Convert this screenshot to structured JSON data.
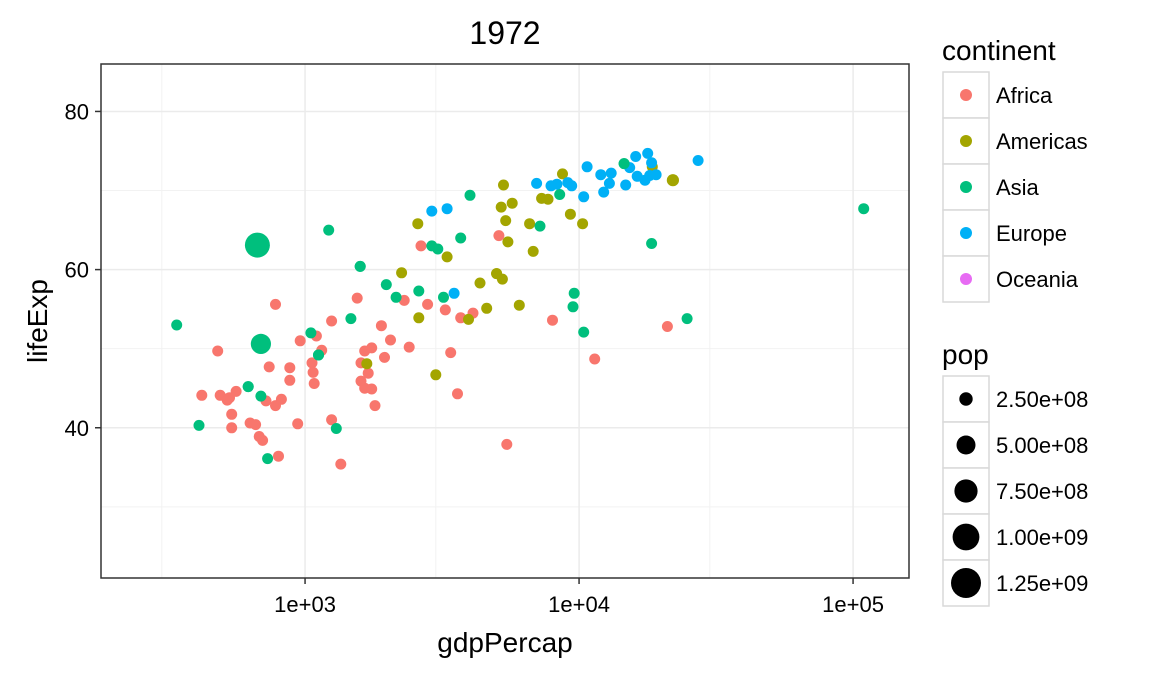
{
  "chart_data": {
    "type": "scatter",
    "title": "1972",
    "xlabel": "gdpPercap",
    "ylabel": "lifeExp",
    "x_scale": "log10",
    "xlim": [
      180,
      160000
    ],
    "ylim": [
      21,
      86
    ],
    "grid": true,
    "x_ticks": [
      {
        "value": 1000,
        "label": "1e+03"
      },
      {
        "value": 10000,
        "label": "1e+04"
      },
      {
        "value": 100000,
        "label": "1e+05"
      }
    ],
    "y_ticks": [
      {
        "value": 40,
        "label": "40"
      },
      {
        "value": 60,
        "label": "60"
      },
      {
        "value": 80,
        "label": "80"
      }
    ],
    "legend_color": {
      "title": "continent",
      "items": [
        {
          "name": "Africa",
          "color": "#F8766D"
        },
        {
          "name": "Americas",
          "color": "#A3A500"
        },
        {
          "name": "Asia",
          "color": "#00BF7D"
        },
        {
          "name": "Europe",
          "color": "#00B0F6"
        },
        {
          "name": "Oceania",
          "color": "#E76BF3"
        }
      ]
    },
    "legend_size": {
      "title": "pop",
      "items": [
        {
          "label": "2.50e+08",
          "value": 250000000
        },
        {
          "label": "5.00e+08",
          "value": 500000000
        },
        {
          "label": "7.50e+08",
          "value": 750000000
        },
        {
          "label": "1.00e+09",
          "value": 1000000000
        },
        {
          "label": "1.25e+09",
          "value": 1250000000
        }
      ]
    },
    "legend_placement": "right",
    "series": [
      {
        "name": "Africa",
        "points": [
          [
            420,
            44.1
          ],
          [
            480,
            49.7
          ],
          [
            490,
            44.1
          ],
          [
            520,
            43.5
          ],
          [
            540,
            41.7
          ],
          [
            540,
            40.0
          ],
          [
            530,
            43.8
          ],
          [
            560,
            44.6
          ],
          [
            630,
            40.6
          ],
          [
            660,
            40.4
          ],
          [
            680,
            38.9
          ],
          [
            700,
            38.4
          ],
          [
            720,
            43.4
          ],
          [
            740,
            47.7
          ],
          [
            780,
            42.8
          ],
          [
            780,
            55.6
          ],
          [
            800,
            36.4
          ],
          [
            820,
            43.6
          ],
          [
            880,
            46.0
          ],
          [
            880,
            47.6
          ],
          [
            940,
            40.5
          ],
          [
            960,
            51.0
          ],
          [
            1060,
            48.2
          ],
          [
            1070,
            47.0
          ],
          [
            1080,
            45.6
          ],
          [
            1100,
            51.6
          ],
          [
            1150,
            49.8
          ],
          [
            1250,
            53.5
          ],
          [
            1250,
            41.0
          ],
          [
            1350,
            35.4
          ],
          [
            1550,
            56.4
          ],
          [
            1600,
            45.9
          ],
          [
            1600,
            48.2
          ],
          [
            1650,
            45.0
          ],
          [
            1650,
            49.7
          ],
          [
            1700,
            46.9
          ],
          [
            1750,
            44.9
          ],
          [
            1750,
            50.1
          ],
          [
            1800,
            42.8
          ],
          [
            1900,
            52.9
          ],
          [
            1950,
            48.9
          ],
          [
            2050,
            51.1
          ],
          [
            2300,
            56.1
          ],
          [
            2400,
            50.2
          ],
          [
            2650,
            63.0
          ],
          [
            2800,
            55.6
          ],
          [
            3250,
            54.9
          ],
          [
            3400,
            49.5
          ],
          [
            3600,
            44.3
          ],
          [
            3700,
            53.9
          ],
          [
            4100,
            54.5
          ],
          [
            5100,
            64.3
          ],
          [
            5450,
            37.9
          ],
          [
            8000,
            53.6
          ],
          [
            11400,
            48.7
          ],
          [
            21000,
            52.8
          ]
        ]
      },
      {
        "name": "Americas",
        "points": [
          [
            1680,
            48.1
          ],
          [
            2250,
            59.6
          ],
          [
            2580,
            65.8
          ],
          [
            2600,
            53.9
          ],
          [
            3000,
            46.7
          ],
          [
            3300,
            61.6
          ],
          [
            3950,
            53.7
          ],
          [
            4350,
            58.3
          ],
          [
            4600,
            55.1
          ],
          [
            5000,
            59.5
          ],
          [
            5250,
            58.8
          ],
          [
            5200,
            67.9
          ],
          [
            5300,
            70.7
          ],
          [
            5400,
            66.2
          ],
          [
            5500,
            63.5
          ],
          [
            5700,
            68.4
          ],
          [
            6050,
            55.5
          ],
          [
            6600,
            65.8
          ],
          [
            6800,
            62.3
          ],
          [
            7300,
            69.0
          ],
          [
            7700,
            68.9
          ],
          [
            8700,
            72.1
          ],
          [
            9300,
            67.0
          ],
          [
            10300,
            65.8
          ],
          [
            18500,
            73.0
          ],
          [
            22000,
            71.3
          ]
        ]
      },
      {
        "name": "Asia",
        "points": [
          [
            340,
            53.0
          ],
          [
            410,
            40.3
          ],
          [
            620,
            45.2
          ],
          [
            670,
            63.1
          ],
          [
            690,
            44.0
          ],
          [
            690,
            50.6
          ],
          [
            730,
            36.1
          ],
          [
            1050,
            52.0
          ],
          [
            1120,
            49.2
          ],
          [
            1220,
            65.0
          ],
          [
            1300,
            39.9
          ],
          [
            1470,
            53.8
          ],
          [
            1590,
            60.4
          ],
          [
            1980,
            58.1
          ],
          [
            2150,
            56.5
          ],
          [
            2600,
            57.3
          ],
          [
            2900,
            63.0
          ],
          [
            3050,
            62.6
          ],
          [
            3200,
            56.5
          ],
          [
            3700,
            64.0
          ],
          [
            4000,
            69.4
          ],
          [
            7200,
            65.5
          ],
          [
            8500,
            69.5
          ],
          [
            9500,
            55.3
          ],
          [
            9600,
            57.0
          ],
          [
            10400,
            52.1
          ],
          [
            14600,
            73.4
          ],
          [
            18400,
            63.3
          ],
          [
            24800,
            53.8
          ],
          [
            109300,
            67.7
          ]
        ]
      },
      {
        "name": "Europe",
        "points": [
          [
            2900,
            67.4
          ],
          [
            3300,
            67.7
          ],
          [
            3500,
            57.0
          ],
          [
            7000,
            70.9
          ],
          [
            7900,
            70.6
          ],
          [
            8300,
            70.8
          ],
          [
            9100,
            71.0
          ],
          [
            9400,
            70.6
          ],
          [
            10400,
            69.2
          ],
          [
            10700,
            73.0
          ],
          [
            12000,
            72.0
          ],
          [
            12300,
            69.8
          ],
          [
            12900,
            70.9
          ],
          [
            13100,
            72.2
          ],
          [
            14800,
            70.7
          ],
          [
            15300,
            72.9
          ],
          [
            16100,
            74.3
          ],
          [
            16300,
            71.8
          ],
          [
            17400,
            71.3
          ],
          [
            17800,
            74.7
          ],
          [
            18100,
            71.9
          ],
          [
            18400,
            73.5
          ],
          [
            19100,
            72.0
          ],
          [
            27200,
            73.8
          ]
        ]
      },
      {
        "name": "Oceania",
        "points": []
      }
    ],
    "large_points": [
      {
        "series": "Asia",
        "x": 670,
        "y": 63.1,
        "pop": 862000000
      },
      {
        "series": "Asia",
        "x": 690,
        "y": 50.6,
        "pop": 567000000
      },
      {
        "series": "Americas",
        "x": 22000,
        "y": 71.3,
        "pop": 210000000
      },
      {
        "series": "Asia",
        "x": 14600,
        "y": 73.4,
        "pop": 107000000
      },
      {
        "series": "Asia",
        "x": 1590,
        "y": 60.4,
        "pop": 120000000
      },
      {
        "series": "Asia",
        "x": 1120,
        "y": 49.2,
        "pop": 136000000
      },
      {
        "series": "Asia",
        "x": 620,
        "y": 45.2,
        "pop": 70000000
      },
      {
        "series": "Americas",
        "x": 5000,
        "y": 59.5,
        "pop": 100000000
      }
    ]
  }
}
